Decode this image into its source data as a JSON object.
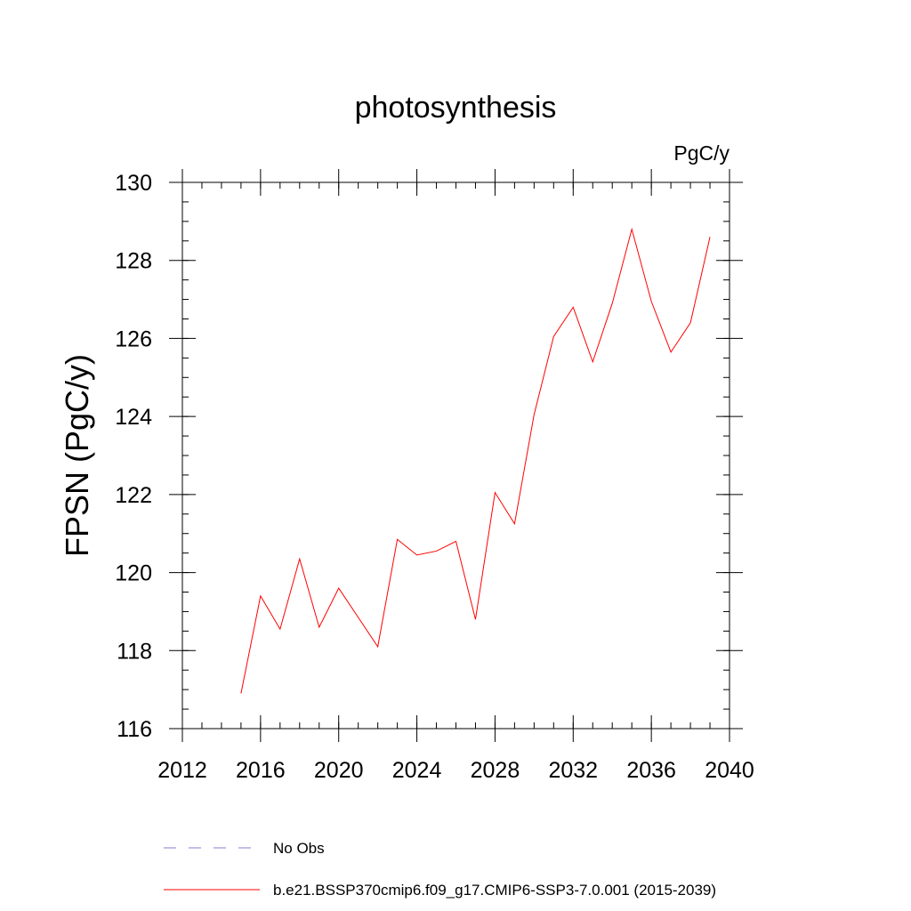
{
  "chart_data": {
    "type": "line",
    "title": "photosynthesis",
    "units_label": "PgC/y",
    "xlabel": "",
    "ylabel": "FPSN  (PgC/y)",
    "xlim": [
      2012,
      2040
    ],
    "ylim": [
      116,
      130
    ],
    "x_ticks": [
      "2012",
      "2016",
      "2020",
      "2024",
      "2028",
      "2032",
      "2036",
      "2040"
    ],
    "y_ticks": [
      "116",
      "118",
      "120",
      "122",
      "124",
      "126",
      "128",
      "130"
    ],
    "x_minor_step": 1,
    "y_minor_step": 0.5,
    "grid": false,
    "legend_placement": "bottom",
    "series": [
      {
        "name": "b.e21.BSSP370cmip6.f09_g17.CMIP6-SSP3-7.0.001 (2015-2039)",
        "color": "#ff0000",
        "style": "solid",
        "x": [
          2015,
          2016,
          2017,
          2018,
          2019,
          2020,
          2021,
          2022,
          2023,
          2024,
          2025,
          2026,
          2027,
          2028,
          2029,
          2030,
          2031,
          2032,
          2033,
          2034,
          2035,
          2036,
          2037,
          2038,
          2039
        ],
        "values": [
          116.9,
          119.4,
          118.55,
          120.35,
          118.6,
          119.6,
          118.85,
          118.1,
          120.85,
          120.45,
          120.55,
          120.8,
          118.8,
          122.05,
          121.25,
          124.05,
          126.05,
          126.8,
          125.4,
          126.9,
          128.8,
          126.95,
          125.65,
          126.4,
          128.6
        ]
      }
    ],
    "legend": [
      {
        "label": "No Obs",
        "color": "#7f7fcf",
        "style": "dashed"
      },
      {
        "label": "b.e21.BSSP370cmip6.f09_g17.CMIP6-SSP3-7.0.001 (2015-2039)",
        "color": "#ff0000",
        "style": "solid"
      }
    ]
  }
}
